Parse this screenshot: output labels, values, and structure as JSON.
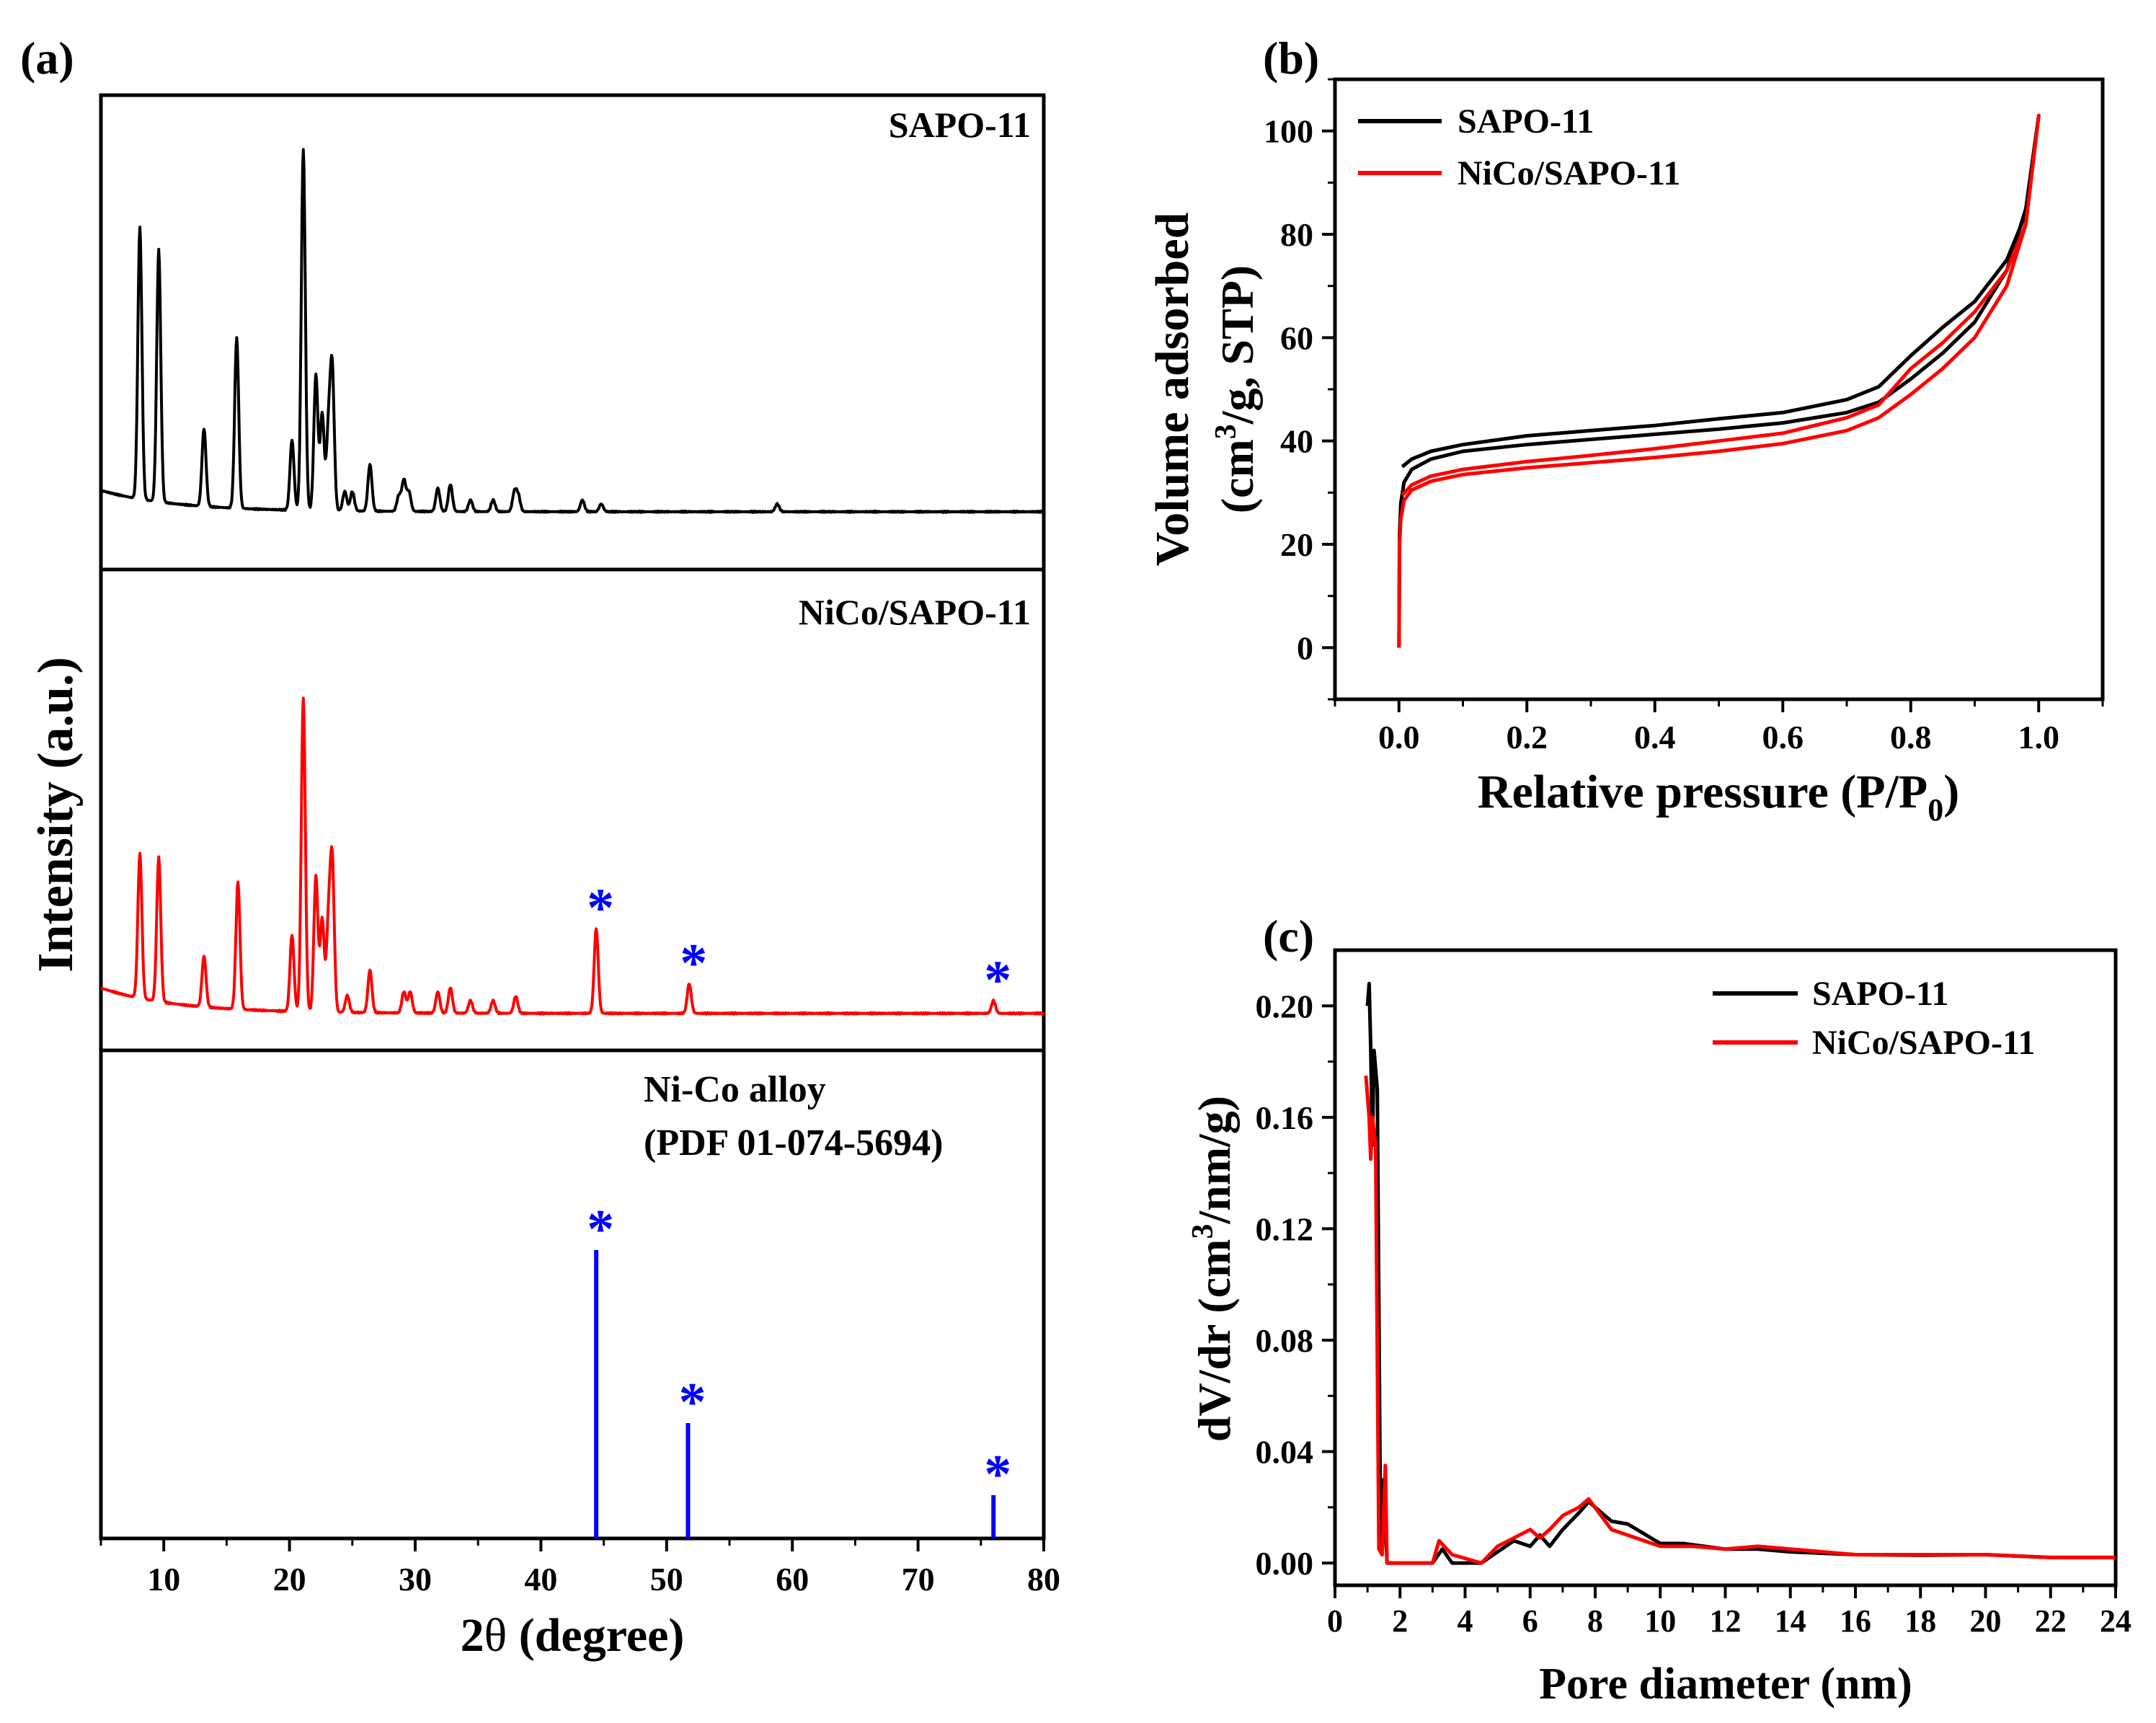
{
  "chart_data": [
    {
      "panel": "(a)",
      "type": "line",
      "xlabel_pre": "2",
      "xlabel_theta": "θ",
      "xlabel_post": " (degree)",
      "ylabel": "Intensity (a.u.)",
      "xlim": [
        5,
        80
      ],
      "xticks": [
        10,
        20,
        30,
        40,
        50,
        60,
        70,
        80
      ],
      "marker": "*",
      "series": [
        {
          "name": "SAPO-11",
          "label": "SAPO-11",
          "color": "#000000",
          "baseline": 0.055,
          "peaks": [
            [
              8.1,
              0.7
            ],
            [
              9.6,
              0.65
            ],
            [
              13.2,
              0.2
            ],
            [
              15.8,
              0.44
            ],
            [
              20.2,
              0.18
            ],
            [
              21.1,
              0.93
            ],
            [
              22.1,
              0.35
            ],
            [
              22.6,
              0.25
            ],
            [
              23.1,
              0.2
            ],
            [
              23.4,
              0.36
            ],
            [
              24.4,
              0.05
            ],
            [
              25.0,
              0.05
            ],
            [
              26.4,
              0.12
            ],
            [
              28.7,
              0.04
            ],
            [
              29.1,
              0.08
            ],
            [
              29.5,
              0.05
            ],
            [
              31.8,
              0.06
            ],
            [
              32.8,
              0.07
            ],
            [
              34.4,
              0.03
            ],
            [
              36.2,
              0.03
            ],
            [
              37.9,
              0.05
            ],
            [
              38.2,
              0.04
            ],
            [
              43.3,
              0.03
            ],
            [
              44.8,
              0.02
            ],
            [
              58.8,
              0.02
            ]
          ]
        },
        {
          "name": "NiCo/SAPO-11",
          "label": "NiCo/SAPO-11",
          "color": "#ff0000",
          "baseline": 0.06,
          "peaks": [
            [
              8.1,
              0.34
            ],
            [
              9.6,
              0.34
            ],
            [
              13.2,
              0.12
            ],
            [
              15.9,
              0.3
            ],
            [
              20.2,
              0.18
            ],
            [
              21.1,
              0.74
            ],
            [
              22.1,
              0.32
            ],
            [
              22.6,
              0.22
            ],
            [
              23.1,
              0.2
            ],
            [
              23.4,
              0.35
            ],
            [
              24.6,
              0.04
            ],
            [
              26.4,
              0.1
            ],
            [
              29.1,
              0.05
            ],
            [
              29.6,
              0.05
            ],
            [
              31.8,
              0.05
            ],
            [
              32.8,
              0.06
            ],
            [
              34.4,
              0.03
            ],
            [
              36.2,
              0.03
            ],
            [
              38.0,
              0.04
            ],
            [
              44.4,
              0.2
            ],
            [
              51.8,
              0.07
            ],
            [
              76.0,
              0.03
            ]
          ]
        }
      ],
      "reference": {
        "label_line1": "Ni-Co alloy",
        "label_line2": "(PDF 01-074-5694)",
        "color": "#0000ff",
        "lines": [
          [
            44.4,
            0.4
          ],
          [
            51.7,
            0.16
          ],
          [
            76.0,
            0.06
          ]
        ]
      },
      "starred_peaks_2theta": [
        44.4,
        51.8,
        76.0
      ]
    },
    {
      "panel": "(b)",
      "type": "line",
      "xlabel_main": "Relative pressure (P/P",
      "xlabel_sub": "0",
      "xlabel_close": ")",
      "ylabel_line1": "Volume adsorbed",
      "ylabel_line2_pre": "(cm",
      "ylabel_line2_sup": "3",
      "ylabel_line2_post": "/g, STP)",
      "xlim": [
        -0.1,
        1.1
      ],
      "ylim": [
        -10,
        110
      ],
      "xticks": [
        "0.0",
        "0.2",
        "0.4",
        "0.6",
        "0.8",
        "1.0"
      ],
      "yticks": [
        0,
        20,
        40,
        60,
        80,
        100
      ],
      "legend_position": "top-left",
      "series": [
        {
          "name": "SAPO-11",
          "label": "SAPO-11",
          "color": "#000000",
          "adsorption": [
            [
              0.0,
              0
            ],
            [
              0.001,
              22
            ],
            [
              0.003,
              28
            ],
            [
              0.008,
              32
            ],
            [
              0.02,
              34.5
            ],
            [
              0.05,
              36.5
            ],
            [
              0.1,
              38
            ],
            [
              0.2,
              39.3
            ],
            [
              0.3,
              40.3
            ],
            [
              0.4,
              41.3
            ],
            [
              0.5,
              42.3
            ],
            [
              0.6,
              43.5
            ],
            [
              0.7,
              45.5
            ],
            [
              0.75,
              47.5
            ],
            [
              0.8,
              52
            ],
            [
              0.85,
              57
            ],
            [
              0.9,
              63
            ],
            [
              0.95,
              73
            ],
            [
              0.98,
              85
            ],
            [
              1.0,
              103
            ]
          ],
          "desorption": [
            [
              1.0,
              103
            ],
            [
              0.98,
              84
            ],
            [
              0.95,
              75
            ],
            [
              0.9,
              67
            ],
            [
              0.85,
              62
            ],
            [
              0.8,
              56.5
            ],
            [
              0.75,
              50.5
            ],
            [
              0.7,
              48
            ],
            [
              0.6,
              45.5
            ],
            [
              0.5,
              44.3
            ],
            [
              0.4,
              43
            ],
            [
              0.3,
              42
            ],
            [
              0.2,
              41
            ],
            [
              0.1,
              39.3
            ],
            [
              0.05,
              38
            ],
            [
              0.02,
              36.5
            ],
            [
              0.005,
              35
            ]
          ]
        },
        {
          "name": "NiCo/SAPO-11",
          "label": "NiCo/SAPO-11",
          "color": "#ff0000",
          "adsorption": [
            [
              0.0,
              0
            ],
            [
              0.001,
              20
            ],
            [
              0.003,
              25
            ],
            [
              0.008,
              28.5
            ],
            [
              0.02,
              30.5
            ],
            [
              0.05,
              32.2
            ],
            [
              0.1,
              33.5
            ],
            [
              0.2,
              34.8
            ],
            [
              0.3,
              35.8
            ],
            [
              0.4,
              36.8
            ],
            [
              0.5,
              38
            ],
            [
              0.6,
              39.5
            ],
            [
              0.7,
              42
            ],
            [
              0.75,
              44.5
            ],
            [
              0.8,
              49
            ],
            [
              0.85,
              54
            ],
            [
              0.9,
              60
            ],
            [
              0.95,
              70
            ],
            [
              0.98,
              82
            ],
            [
              1.0,
              103
            ]
          ],
          "desorption": [
            [
              1.0,
              103
            ],
            [
              0.98,
              82
            ],
            [
              0.95,
              73
            ],
            [
              0.9,
              65
            ],
            [
              0.85,
              59
            ],
            [
              0.8,
              54
            ],
            [
              0.75,
              47
            ],
            [
              0.7,
              44.5
            ],
            [
              0.6,
              41.5
            ],
            [
              0.5,
              40
            ],
            [
              0.4,
              38.5
            ],
            [
              0.3,
              37.2
            ],
            [
              0.2,
              36
            ],
            [
              0.1,
              34.5
            ],
            [
              0.05,
              33.2
            ],
            [
              0.02,
              31.5
            ],
            [
              0.005,
              29.5
            ]
          ]
        }
      ]
    },
    {
      "panel": "(c)",
      "type": "line",
      "xlabel": "Pore diameter (nm)",
      "ylabel_pre": "dV/dr (cm",
      "ylabel_sup": "3",
      "ylabel_post": "/nm/g)",
      "xlim": [
        0,
        24
      ],
      "ylim": [
        -0.008,
        0.22
      ],
      "xticks": [
        0,
        2,
        4,
        6,
        8,
        10,
        12,
        14,
        16,
        18,
        20,
        22,
        24
      ],
      "yticks": [
        "0.00",
        "0.04",
        "0.08",
        "0.12",
        "0.16",
        "0.20"
      ],
      "legend_position": "top-right",
      "series": [
        {
          "name": "SAPO-11",
          "label": "SAPO-11",
          "color": "#000000",
          "points": [
            [
              1.0,
              0.2
            ],
            [
              1.05,
              0.208
            ],
            [
              1.1,
              0.185
            ],
            [
              1.15,
              0.15
            ],
            [
              1.2,
              0.184
            ],
            [
              1.3,
              0.17
            ],
            [
              1.4,
              0.01
            ],
            [
              1.45,
              0.003
            ],
            [
              1.5,
              0.03
            ],
            [
              1.55,
              0.015
            ],
            [
              1.6,
              0.0
            ],
            [
              2.0,
              0.0
            ],
            [
              3.0,
              0.0
            ],
            [
              3.3,
              0.005
            ],
            [
              3.6,
              0.0
            ],
            [
              4.5,
              0.0
            ],
            [
              5.0,
              0.004
            ],
            [
              5.5,
              0.008
            ],
            [
              6.0,
              0.006
            ],
            [
              6.3,
              0.01
            ],
            [
              6.6,
              0.006
            ],
            [
              7.0,
              0.012
            ],
            [
              7.5,
              0.018
            ],
            [
              7.8,
              0.022
            ],
            [
              8.5,
              0.015
            ],
            [
              9.0,
              0.014
            ],
            [
              10.0,
              0.007
            ],
            [
              10.7,
              0.007
            ],
            [
              12.0,
              0.005
            ],
            [
              13.0,
              0.005
            ],
            [
              14.0,
              0.004
            ],
            [
              16.0,
              0.003
            ],
            [
              18.0,
              0.0028
            ],
            [
              20.0,
              0.003
            ],
            [
              22.0,
              0.002
            ],
            [
              24.0,
              0.002
            ]
          ]
        },
        {
          "name": "NiCo/SAPO-11",
          "label": "NiCo/SAPO-11",
          "color": "#ff0000",
          "points": [
            [
              0.95,
              0.175
            ],
            [
              1.05,
              0.16
            ],
            [
              1.1,
              0.145
            ],
            [
              1.15,
              0.16
            ],
            [
              1.25,
              0.15
            ],
            [
              1.35,
              0.005
            ],
            [
              1.45,
              0.003
            ],
            [
              1.55,
              0.035
            ],
            [
              1.6,
              0.0
            ],
            [
              2.0,
              0.0
            ],
            [
              3.0,
              0.0
            ],
            [
              3.2,
              0.008
            ],
            [
              3.6,
              0.003
            ],
            [
              4.5,
              0.0
            ],
            [
              5.0,
              0.006
            ],
            [
              5.5,
              0.009
            ],
            [
              6.0,
              0.012
            ],
            [
              6.3,
              0.009
            ],
            [
              6.6,
              0.012
            ],
            [
              7.0,
              0.017
            ],
            [
              7.5,
              0.02
            ],
            [
              7.8,
              0.023
            ],
            [
              8.5,
              0.012
            ],
            [
              9.0,
              0.01
            ],
            [
              10.0,
              0.006
            ],
            [
              11.0,
              0.006
            ],
            [
              12.0,
              0.005
            ],
            [
              13.0,
              0.006
            ],
            [
              14.0,
              0.005
            ],
            [
              16.0,
              0.003
            ],
            [
              18.0,
              0.003
            ],
            [
              20.0,
              0.003
            ],
            [
              22.0,
              0.002
            ],
            [
              24.0,
              0.002
            ]
          ]
        }
      ]
    }
  ]
}
